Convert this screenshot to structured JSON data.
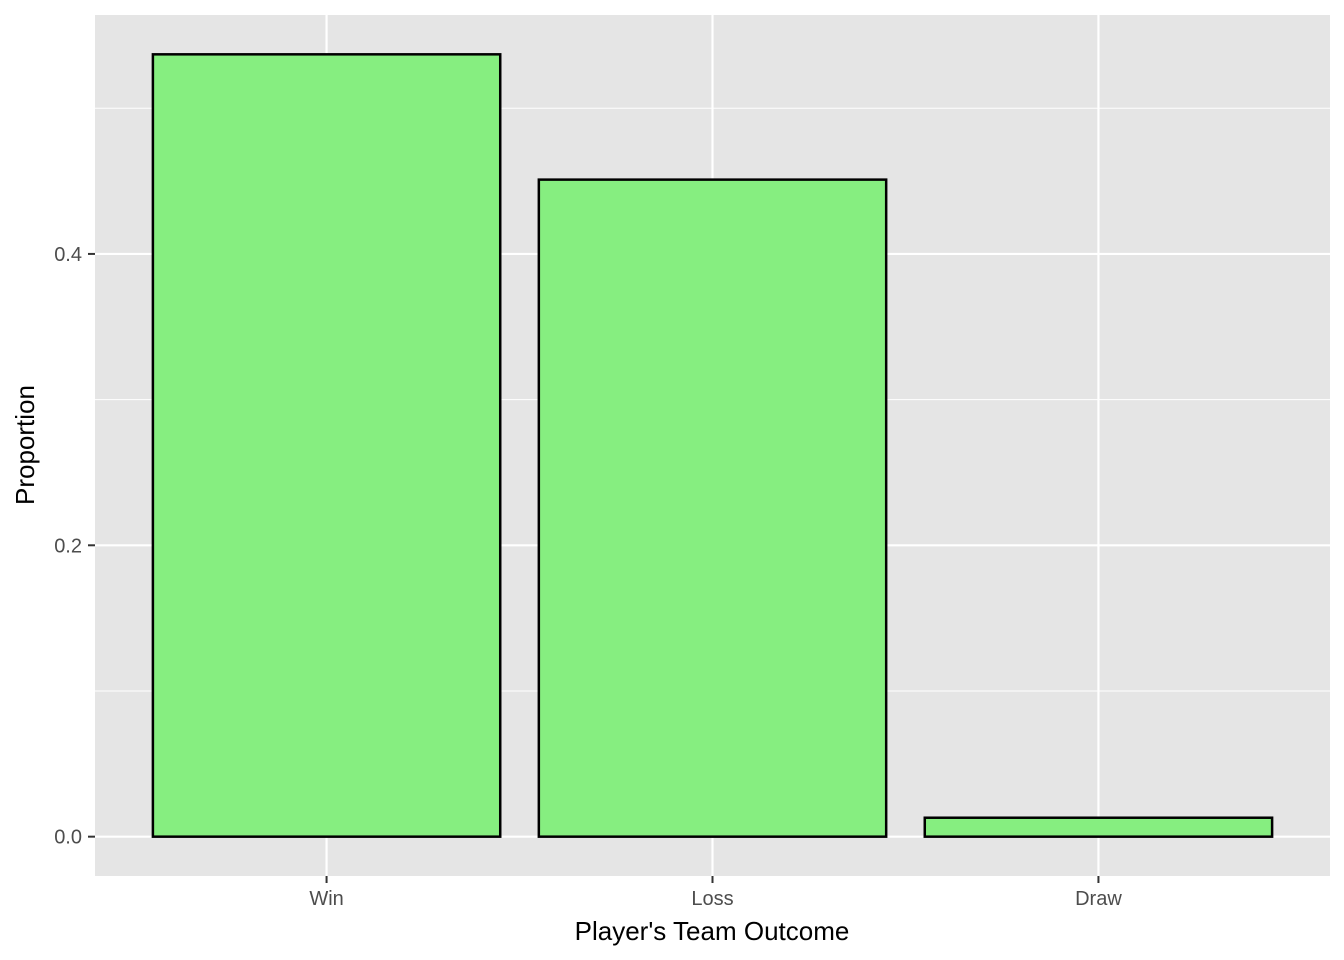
{
  "chart_data": {
    "type": "bar",
    "categories": [
      "Win",
      "Loss",
      "Draw"
    ],
    "values": [
      0.537,
      0.451,
      0.013
    ],
    "title": "",
    "xlabel": "Player's Team Outcome",
    "ylabel": "Proportion",
    "ylim": [
      -0.027,
      0.564
    ],
    "yticks": [
      0.0,
      0.2,
      0.4
    ],
    "ytick_labels": [
      "0.0",
      "0.2",
      "0.4"
    ],
    "grid": true,
    "colors": {
      "bar_fill": "#86EE80",
      "bar_stroke": "#000000",
      "panel_background": "#E5E5E5",
      "grid_line": "#FFFFFF",
      "tick_text": "#4D4D4D",
      "axis_title": "#000000"
    }
  }
}
